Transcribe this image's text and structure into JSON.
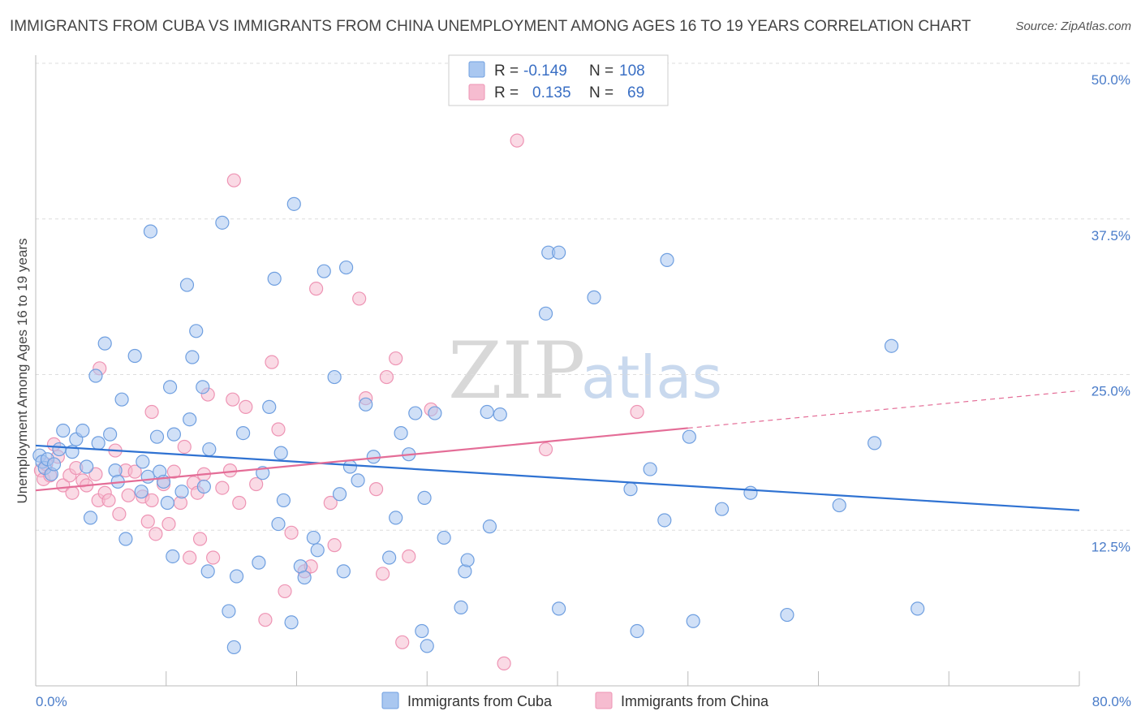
{
  "title": "IMMIGRANTS FROM CUBA VS IMMIGRANTS FROM CHINA UNEMPLOYMENT AMONG AGES 16 TO 19 YEARS CORRELATION CHART",
  "source": "Source: ZipAtlas.com",
  "watermark": {
    "zip": "ZIP",
    "atlas": "atlas"
  },
  "legend_top": [
    {
      "r_label": "R =",
      "r_value": "-0.149",
      "n_label": "N =",
      "n_value": "108"
    },
    {
      "r_label": "R =",
      "r_value": "0.135",
      "n_label": "N =",
      "n_value": "69"
    }
  ],
  "colors": {
    "cuba_fill": "#a9c7f0",
    "cuba_stroke": "#6f9fe0",
    "cuba_line": "#2f72d2",
    "china_fill": "#f6bcd0",
    "china_stroke": "#ee94b4",
    "china_line": "#e46d97",
    "grid": "#dddddd",
    "axis_text": "#4a7cc9"
  },
  "chart_data": {
    "type": "scatter",
    "title": "IMMIGRANTS FROM CUBA VS IMMIGRANTS FROM CHINA UNEMPLOYMENT AMONG AGES 16 TO 19 YEARS CORRELATION CHART",
    "xlabel": "",
    "ylabel": "Unemployment Among Ages 16 to 19 years",
    "xlim": [
      0,
      80
    ],
    "ylim": [
      0,
      50
    ],
    "x_tick_labels": [
      "0.0%",
      "80.0%"
    ],
    "y_ticks": [
      12.5,
      25.0,
      37.5,
      50.0
    ],
    "y_tick_labels": [
      "12.5%",
      "25.0%",
      "37.5%",
      "50.0%"
    ],
    "grid": true,
    "legend": "bottom-center",
    "series": [
      {
        "name": "Immigrants from Cuba",
        "r": -0.149,
        "n": 108,
        "trend": {
          "x": [
            0,
            80
          ],
          "y": [
            19.3,
            14.1
          ],
          "dashed_from": null
        },
        "points": [
          [
            0.3,
            18.5
          ],
          [
            0.5,
            18.0
          ],
          [
            0.7,
            17.5
          ],
          [
            0.9,
            18.2
          ],
          [
            1.2,
            17.0
          ],
          [
            1.4,
            17.8
          ],
          [
            1.8,
            19.0
          ],
          [
            2.1,
            20.5
          ],
          [
            2.8,
            18.8
          ],
          [
            3.1,
            19.8
          ],
          [
            3.6,
            20.5
          ],
          [
            3.9,
            17.6
          ],
          [
            4.2,
            13.5
          ],
          [
            4.6,
            24.9
          ],
          [
            4.8,
            19.5
          ],
          [
            5.3,
            27.5
          ],
          [
            5.7,
            20.2
          ],
          [
            6.1,
            17.3
          ],
          [
            6.3,
            16.4
          ],
          [
            6.6,
            23.0
          ],
          [
            6.9,
            11.8
          ],
          [
            7.6,
            26.5
          ],
          [
            8.1,
            15.6
          ],
          [
            8.2,
            18.0
          ],
          [
            8.6,
            16.8
          ],
          [
            8.8,
            36.5
          ],
          [
            9.3,
            20.0
          ],
          [
            9.5,
            17.2
          ],
          [
            9.8,
            16.4
          ],
          [
            10.1,
            14.7
          ],
          [
            10.3,
            24.0
          ],
          [
            10.5,
            10.4
          ],
          [
            10.6,
            20.2
          ],
          [
            11.2,
            15.6
          ],
          [
            11.6,
            32.2
          ],
          [
            11.8,
            21.4
          ],
          [
            12.0,
            26.4
          ],
          [
            12.3,
            28.5
          ],
          [
            12.8,
            24.0
          ],
          [
            12.9,
            16.0
          ],
          [
            13.2,
            9.2
          ],
          [
            13.3,
            19.0
          ],
          [
            14.3,
            37.2
          ],
          [
            14.8,
            6.0
          ],
          [
            15.2,
            3.1
          ],
          [
            15.4,
            8.8
          ],
          [
            15.9,
            20.3
          ],
          [
            17.1,
            9.9
          ],
          [
            17.4,
            17.1
          ],
          [
            17.9,
            22.4
          ],
          [
            18.3,
            32.7
          ],
          [
            18.6,
            13.0
          ],
          [
            18.8,
            18.7
          ],
          [
            19.0,
            14.9
          ],
          [
            19.6,
            5.1
          ],
          [
            19.8,
            38.7
          ],
          [
            20.3,
            9.6
          ],
          [
            20.6,
            8.7
          ],
          [
            21.3,
            11.9
          ],
          [
            21.6,
            10.9
          ],
          [
            22.1,
            33.3
          ],
          [
            22.9,
            24.8
          ],
          [
            23.3,
            15.4
          ],
          [
            23.6,
            9.2
          ],
          [
            23.8,
            33.6
          ],
          [
            24.1,
            17.6
          ],
          [
            24.7,
            16.5
          ],
          [
            25.3,
            22.6
          ],
          [
            25.9,
            18.4
          ],
          [
            27.1,
            10.3
          ],
          [
            27.6,
            13.5
          ],
          [
            28.0,
            20.3
          ],
          [
            28.6,
            18.6
          ],
          [
            29.1,
            21.9
          ],
          [
            29.6,
            4.4
          ],
          [
            29.8,
            15.1
          ],
          [
            30.0,
            3.2
          ],
          [
            30.6,
            21.9
          ],
          [
            31.3,
            11.9
          ],
          [
            32.6,
            6.3
          ],
          [
            32.9,
            9.2
          ],
          [
            33.1,
            10.1
          ],
          [
            34.6,
            22.0
          ],
          [
            34.8,
            12.8
          ],
          [
            35.6,
            21.8
          ],
          [
            39.1,
            29.9
          ],
          [
            39.3,
            34.8
          ],
          [
            40.1,
            34.8
          ],
          [
            40.1,
            6.2
          ],
          [
            42.8,
            31.2
          ],
          [
            45.6,
            15.8
          ],
          [
            46.1,
            4.4
          ],
          [
            47.1,
            17.4
          ],
          [
            48.2,
            13.3
          ],
          [
            48.4,
            34.2
          ],
          [
            50.1,
            20.0
          ],
          [
            50.4,
            5.2
          ],
          [
            52.6,
            14.2
          ],
          [
            54.8,
            15.5
          ],
          [
            57.6,
            5.7
          ],
          [
            61.6,
            14.5
          ],
          [
            64.3,
            19.5
          ],
          [
            65.6,
            27.3
          ],
          [
            67.6,
            6.2
          ]
        ]
      },
      {
        "name": "Immigrants from China",
        "r": 0.135,
        "n": 69,
        "trend": {
          "x": [
            0,
            80
          ],
          "y": [
            15.7,
            23.7
          ],
          "dashed_from": 50
        },
        "points": [
          [
            0.4,
            17.3
          ],
          [
            0.6,
            16.6
          ],
          [
            0.8,
            17.8
          ],
          [
            1.1,
            16.9
          ],
          [
            1.4,
            19.4
          ],
          [
            1.7,
            18.4
          ],
          [
            2.1,
            16.1
          ],
          [
            2.6,
            16.9
          ],
          [
            2.8,
            15.5
          ],
          [
            3.1,
            17.5
          ],
          [
            3.6,
            16.5
          ],
          [
            3.9,
            16.1
          ],
          [
            4.6,
            17.0
          ],
          [
            4.8,
            14.9
          ],
          [
            4.9,
            25.5
          ],
          [
            5.3,
            15.5
          ],
          [
            5.6,
            14.9
          ],
          [
            6.1,
            18.9
          ],
          [
            6.4,
            13.8
          ],
          [
            6.9,
            17.3
          ],
          [
            7.1,
            15.3
          ],
          [
            7.6,
            17.2
          ],
          [
            8.2,
            15.2
          ],
          [
            8.6,
            13.2
          ],
          [
            8.9,
            14.9
          ],
          [
            8.9,
            22.0
          ],
          [
            9.2,
            12.2
          ],
          [
            9.8,
            16.2
          ],
          [
            10.2,
            13.0
          ],
          [
            10.6,
            17.2
          ],
          [
            11.1,
            14.7
          ],
          [
            11.4,
            19.2
          ],
          [
            11.8,
            10.3
          ],
          [
            12.1,
            16.3
          ],
          [
            12.4,
            15.5
          ],
          [
            12.6,
            11.8
          ],
          [
            12.9,
            17.0
          ],
          [
            13.2,
            23.4
          ],
          [
            13.6,
            10.3
          ],
          [
            14.3,
            15.9
          ],
          [
            14.9,
            17.3
          ],
          [
            15.1,
            23.0
          ],
          [
            15.2,
            40.6
          ],
          [
            15.6,
            14.7
          ],
          [
            16.1,
            22.4
          ],
          [
            16.9,
            16.2
          ],
          [
            17.6,
            5.3
          ],
          [
            18.1,
            26.0
          ],
          [
            18.6,
            20.6
          ],
          [
            19.1,
            7.6
          ],
          [
            19.6,
            12.3
          ],
          [
            20.6,
            9.2
          ],
          [
            21.1,
            9.6
          ],
          [
            21.5,
            31.9
          ],
          [
            22.6,
            14.7
          ],
          [
            22.9,
            11.3
          ],
          [
            24.8,
            31.1
          ],
          [
            25.3,
            23.1
          ],
          [
            26.1,
            15.8
          ],
          [
            26.6,
            9.0
          ],
          [
            26.9,
            24.8
          ],
          [
            27.6,
            26.3
          ],
          [
            28.1,
            3.5
          ],
          [
            28.6,
            10.4
          ],
          [
            30.3,
            22.2
          ],
          [
            35.9,
            1.8
          ],
          [
            36.9,
            43.8
          ],
          [
            39.1,
            19.0
          ],
          [
            46.1,
            22.0
          ]
        ]
      }
    ]
  },
  "legend_bottom": [
    "Immigrants from Cuba",
    "Immigrants from China"
  ]
}
